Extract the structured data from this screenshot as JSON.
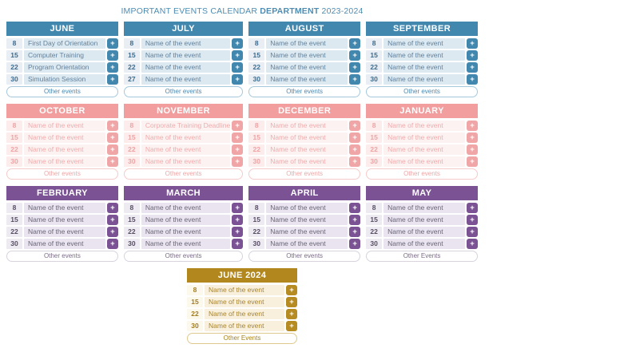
{
  "title": {
    "prefix": "IMPORTANT EVENTS CALENDAR",
    "department": "DEPARTMENT",
    "years": "2023-2024",
    "color": "#4e8cb2"
  },
  "icons": {
    "plus": "+"
  },
  "themes": {
    "blue": {
      "header_bg": "#4187ae",
      "header_text": "#ffffff",
      "date_bg": "#e8eef3",
      "date_text": "#3d6b8e",
      "event_bg": "#dde9f1",
      "event_text": "#60819c",
      "button_bg": "#4187ae",
      "button_text": "#ffffff",
      "pill_border": "#a5c8dd",
      "pill_text": "#4e88ae"
    },
    "pink": {
      "header_bg": "#f29e9e",
      "header_text": "#ffffff",
      "date_bg": "#fcecec",
      "date_text": "#eda4a4",
      "event_bg": "#fdf2f2",
      "event_text": "#efacac",
      "button_bg": "#f0a6a6",
      "button_text": "#ffffff",
      "pill_border": "#f6caca",
      "pill_text": "#eda7a7"
    },
    "purple": {
      "header_bg": "#7b5394",
      "header_text": "#ffffff",
      "date_bg": "#edeaf2",
      "date_text": "#574d63",
      "event_bg": "#e9e4f0",
      "event_text": "#6b6575",
      "button_bg": "#7b5394",
      "button_text": "#ffffff",
      "pill_border": "#d8d3dd",
      "pill_text": "#7a6c85"
    },
    "gold": {
      "header_bg": "#b2871e",
      "header_text": "#ffffff",
      "date_bg": "#fdf8ec",
      "date_text": "#a17d22",
      "event_bg": "#f8f0dd",
      "event_text": "#a8842e",
      "button_bg": "#b68b22",
      "button_text": "#ffffff",
      "pill_border": "#e0c98f",
      "pill_text": "#a5821f"
    }
  },
  "months": [
    {
      "name": "JUNE",
      "theme": "blue",
      "other_label": "Other events",
      "events": [
        {
          "date": "8",
          "name": "First Day of Orientation"
        },
        {
          "date": "15",
          "name": "Computer Training"
        },
        {
          "date": "22",
          "name": "Program Orientation"
        },
        {
          "date": "30",
          "name": "Simulation Session"
        }
      ]
    },
    {
      "name": "JULY",
      "theme": "blue",
      "other_label": "Other events",
      "events": [
        {
          "date": "8",
          "name": "Name of the event"
        },
        {
          "date": "15",
          "name": "Name of the event"
        },
        {
          "date": "22",
          "name": "Name of the event"
        },
        {
          "date": "27",
          "name": "Name of the event"
        }
      ]
    },
    {
      "name": "AUGUST",
      "theme": "blue",
      "other_label": "Other events",
      "events": [
        {
          "date": "8",
          "name": "Name of the event"
        },
        {
          "date": "15",
          "name": "Name of the event"
        },
        {
          "date": "22",
          "name": "Name of the event"
        },
        {
          "date": "30",
          "name": "Name of the event"
        }
      ]
    },
    {
      "name": "SEPTEMBER",
      "theme": "blue",
      "other_label": "Other events",
      "events": [
        {
          "date": "8",
          "name": "Name of the event"
        },
        {
          "date": "15",
          "name": "Name of the event"
        },
        {
          "date": "22",
          "name": "Name of the event"
        },
        {
          "date": "30",
          "name": "Name of the event"
        }
      ]
    },
    {
      "name": "OCTOBER",
      "theme": "pink",
      "other_label": "Other events",
      "events": [
        {
          "date": "8",
          "name": "Name of the event"
        },
        {
          "date": "15",
          "name": "Name of the event"
        },
        {
          "date": "22",
          "name": "Name of the event"
        },
        {
          "date": "30",
          "name": "Name of the event"
        }
      ]
    },
    {
      "name": "NOVEMBER",
      "theme": "pink",
      "other_label": "Other events",
      "events": [
        {
          "date": "8",
          "name": "Corporate Training Deadline"
        },
        {
          "date": "15",
          "name": "Name of the event"
        },
        {
          "date": "22",
          "name": "Name of the event"
        },
        {
          "date": "30",
          "name": "Name of the event"
        }
      ]
    },
    {
      "name": "DECEMBER",
      "theme": "pink",
      "other_label": "Other events",
      "events": [
        {
          "date": "8",
          "name": "Name of the event"
        },
        {
          "date": "15",
          "name": "Name of the event"
        },
        {
          "date": "22",
          "name": "Name of the event"
        },
        {
          "date": "30",
          "name": "Name of the event"
        }
      ]
    },
    {
      "name": "JANUARY",
      "theme": "pink",
      "other_label": "Other events",
      "events": [
        {
          "date": "8",
          "name": "Name of the event"
        },
        {
          "date": "15",
          "name": "Name of the event"
        },
        {
          "date": "22",
          "name": "Name of the event"
        },
        {
          "date": "30",
          "name": "Name of the event"
        }
      ]
    },
    {
      "name": "FEBRUARY",
      "theme": "purple",
      "other_label": "Other events",
      "events": [
        {
          "date": "8",
          "name": "Name of the event"
        },
        {
          "date": "15",
          "name": "Name of the event"
        },
        {
          "date": "22",
          "name": "Name of the event"
        },
        {
          "date": "30",
          "name": "Name of the event"
        }
      ]
    },
    {
      "name": "MARCH",
      "theme": "purple",
      "other_label": "Other events",
      "events": [
        {
          "date": "8",
          "name": "Name of the event"
        },
        {
          "date": "15",
          "name": "Name of the event"
        },
        {
          "date": "22",
          "name": "Name of the event"
        },
        {
          "date": "30",
          "name": "Name of the event"
        }
      ]
    },
    {
      "name": "APRIL",
      "theme": "purple",
      "other_label": "Other events",
      "events": [
        {
          "date": "8",
          "name": "Name of the event"
        },
        {
          "date": "15",
          "name": "Name of the event"
        },
        {
          "date": "22",
          "name": "Name of the event"
        },
        {
          "date": "30",
          "name": "Name of the event"
        }
      ]
    },
    {
      "name": "MAY",
      "theme": "purple",
      "other_label": "Other Events",
      "events": [
        {
          "date": "8",
          "name": "Name of the event"
        },
        {
          "date": "15",
          "name": "Name of the event"
        },
        {
          "date": "22",
          "name": "Name of the event"
        },
        {
          "date": "30",
          "name": "Name of the event"
        }
      ]
    }
  ],
  "footer_month": {
    "name": "JUNE 2024",
    "theme": "gold",
    "other_label": "Other Events",
    "events": [
      {
        "date": "8",
        "name": "Name of the event"
      },
      {
        "date": "15",
        "name": "Name of the event"
      },
      {
        "date": "22",
        "name": "Name of the event"
      },
      {
        "date": "30",
        "name": "Name of the event"
      }
    ]
  }
}
